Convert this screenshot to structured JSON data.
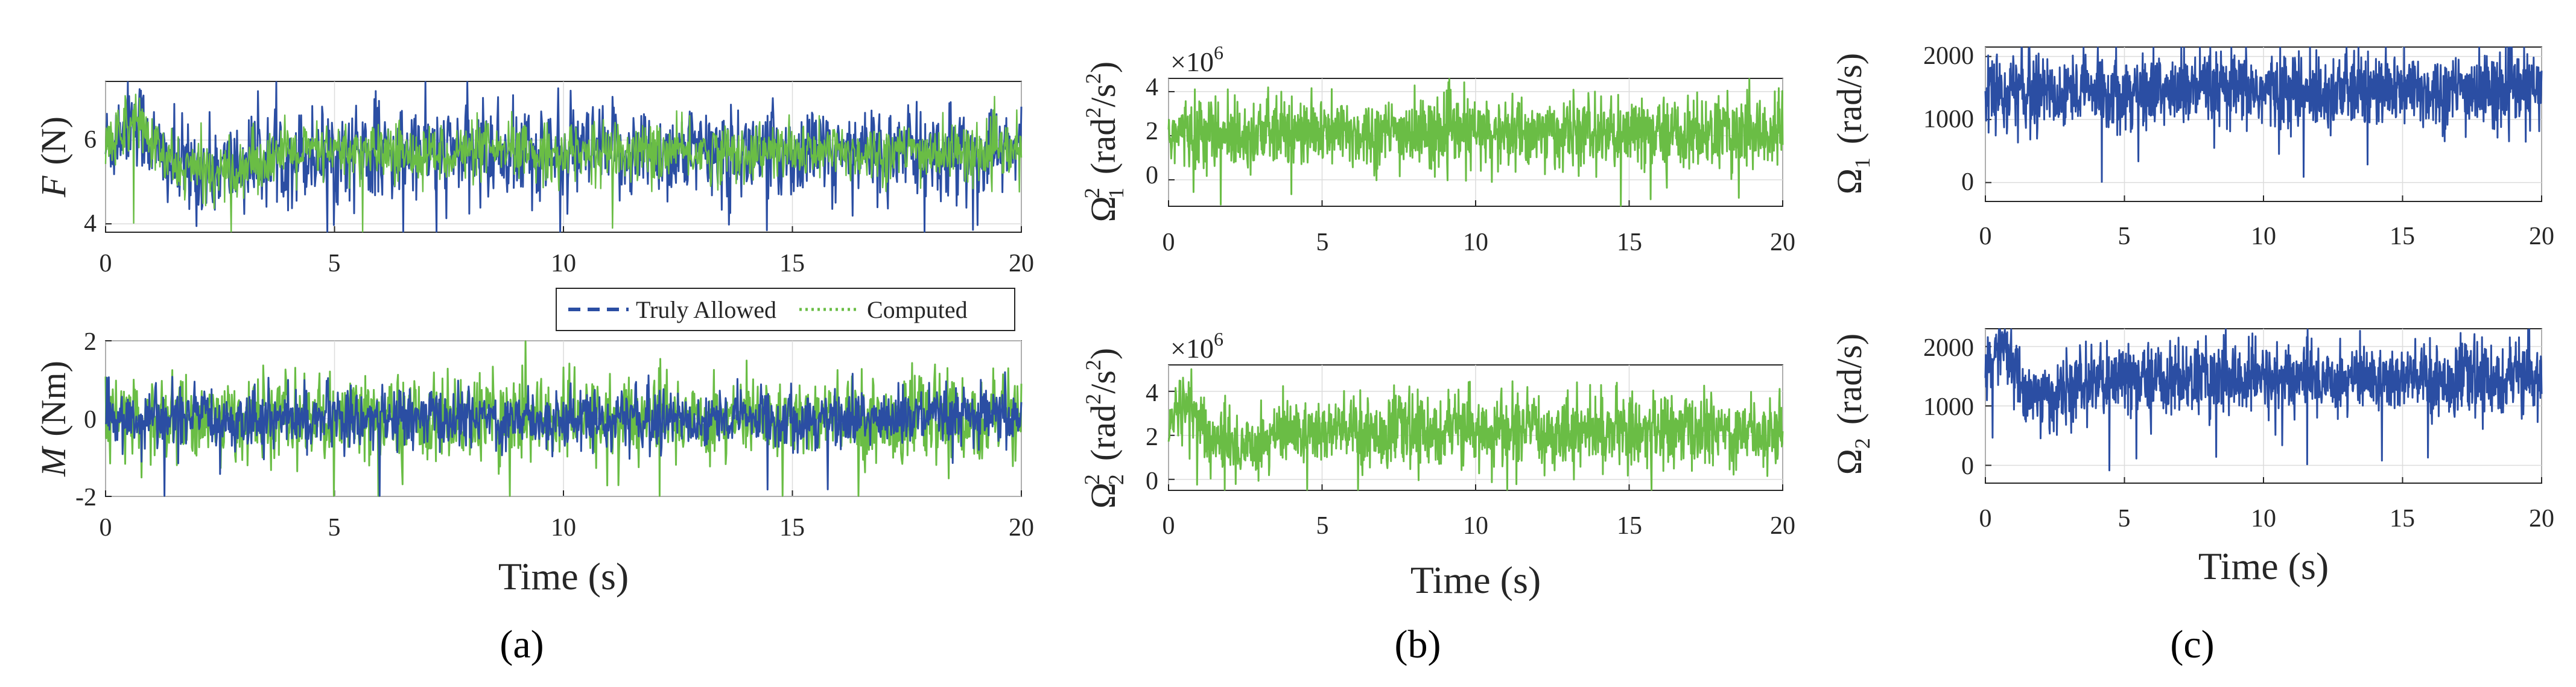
{
  "colors": {
    "truly": "#2b4ea3",
    "computed": "#6abd45",
    "grid": "#dcdcdc",
    "axis": "#262626"
  },
  "chart_data": [
    {
      "type": "line",
      "panel": "a",
      "name": "force",
      "ylabel_var": "F",
      "ylabel_unit": "(N)",
      "xlim": [
        0,
        20
      ],
      "ylim": [
        3.8,
        7.4
      ],
      "xticks": [
        "0",
        "5",
        "10",
        "15",
        "20"
      ],
      "yticks": [
        "4",
        "6"
      ],
      "ytick_values": [
        4,
        6
      ],
      "series": [
        {
          "name": "Truly Allowed",
          "style": "dashed",
          "color": "#2b4ea3",
          "mean": 5.7,
          "noise": 0.55,
          "transient": true
        },
        {
          "name": "Computed",
          "style": "dotted",
          "color": "#6abd45",
          "mean": 5.7,
          "noise": 0.35,
          "transient": true
        }
      ]
    },
    {
      "type": "line",
      "panel": "a",
      "name": "moment",
      "ylabel_var": "M",
      "ylabel_unit": "(Nm)",
      "xlim": [
        0,
        20
      ],
      "ylim": [
        -2,
        2
      ],
      "xticks": [
        "0",
        "5",
        "10",
        "15",
        "20"
      ],
      "yticks": [
        "-2",
        "0",
        "2"
      ],
      "ytick_values": [
        -2,
        0,
        2
      ],
      "xlabel": "Time (s)",
      "series": [
        {
          "name": "Computed",
          "color": "#6abd45",
          "mean": 0,
          "noise": 0.55
        },
        {
          "name": "Truly Allowed",
          "color": "#2b4ea3",
          "mean": 0,
          "noise": 0.38
        }
      ]
    },
    {
      "type": "line",
      "panel": "b",
      "name": "omega1-squared",
      "ylabel": "Ω₁² (rad²/s²)",
      "multiplier": "×10⁶",
      "xlim": [
        0,
        20
      ],
      "ylim": [
        -1.2,
        4.6
      ],
      "xticks": [
        "0",
        "5",
        "10",
        "15",
        "20"
      ],
      "yticks": [
        "0",
        "2",
        "4"
      ],
      "ytick_values": [
        0,
        2,
        4
      ],
      "series": [
        {
          "name": "Ω₁²",
          "color": "#6abd45",
          "mean": 2.1,
          "noise": 0.8
        }
      ]
    },
    {
      "type": "line",
      "panel": "b",
      "name": "omega2-squared",
      "ylabel": "Ω₂² (rad²/s²)",
      "multiplier": "×10⁶",
      "xlim": [
        0,
        20
      ],
      "ylim": [
        -0.5,
        5.2
      ],
      "xticks": [
        "0",
        "5",
        "10",
        "15",
        "20"
      ],
      "yticks": [
        "0",
        "2",
        "4"
      ],
      "ytick_values": [
        0,
        2,
        4
      ],
      "xlabel": "Time (s)",
      "series": [
        {
          "name": "Ω₂²",
          "color": "#6abd45",
          "mean": 2.2,
          "noise": 0.8,
          "transient": true
        }
      ]
    },
    {
      "type": "line",
      "panel": "c",
      "name": "omega1",
      "ylabel": "Ω₁ (rad/s)",
      "xlim": [
        0,
        20
      ],
      "ylim": [
        -300,
        2150
      ],
      "xticks": [
        "0",
        "5",
        "10",
        "15",
        "20"
      ],
      "yticks": [
        "0",
        "1000",
        "2000"
      ],
      "ytick_values": [
        0,
        1000,
        2000
      ],
      "series": [
        {
          "name": "Ω₁",
          "color": "#2b4ea3",
          "mean": 1450,
          "noise": 300
        }
      ]
    },
    {
      "type": "line",
      "panel": "c",
      "name": "omega2",
      "ylabel": "Ω₂ (rad/s)",
      "xlim": [
        0,
        20
      ],
      "ylim": [
        -300,
        2300
      ],
      "xticks": [
        "0",
        "5",
        "10",
        "15",
        "20"
      ],
      "yticks": [
        "0",
        "1000",
        "2000"
      ],
      "ytick_values": [
        0,
        1000,
        2000
      ],
      "xlabel": "Time (s)",
      "series": [
        {
          "name": "Ω₂",
          "color": "#2b4ea3",
          "mean": 1450,
          "noise": 300,
          "transient": true
        }
      ]
    }
  ],
  "legend": {
    "truly": "Truly Allowed",
    "computed": "Computed"
  },
  "panel_labels": {
    "a": "(a)",
    "b": "(b)",
    "c": "(c)"
  },
  "text": {
    "F": "F",
    "F_unit": "(N)",
    "M": "M",
    "M_unit": "(Nm)",
    "time": "Time (s)",
    "mult": "×10",
    "mult_exp": "6",
    "rad": "(rad",
    "s": "/s",
    "close": ")",
    "sq": "2",
    "Omega": "Ω",
    "one": "1",
    "two": "2",
    "rads": "(rad/s)"
  }
}
